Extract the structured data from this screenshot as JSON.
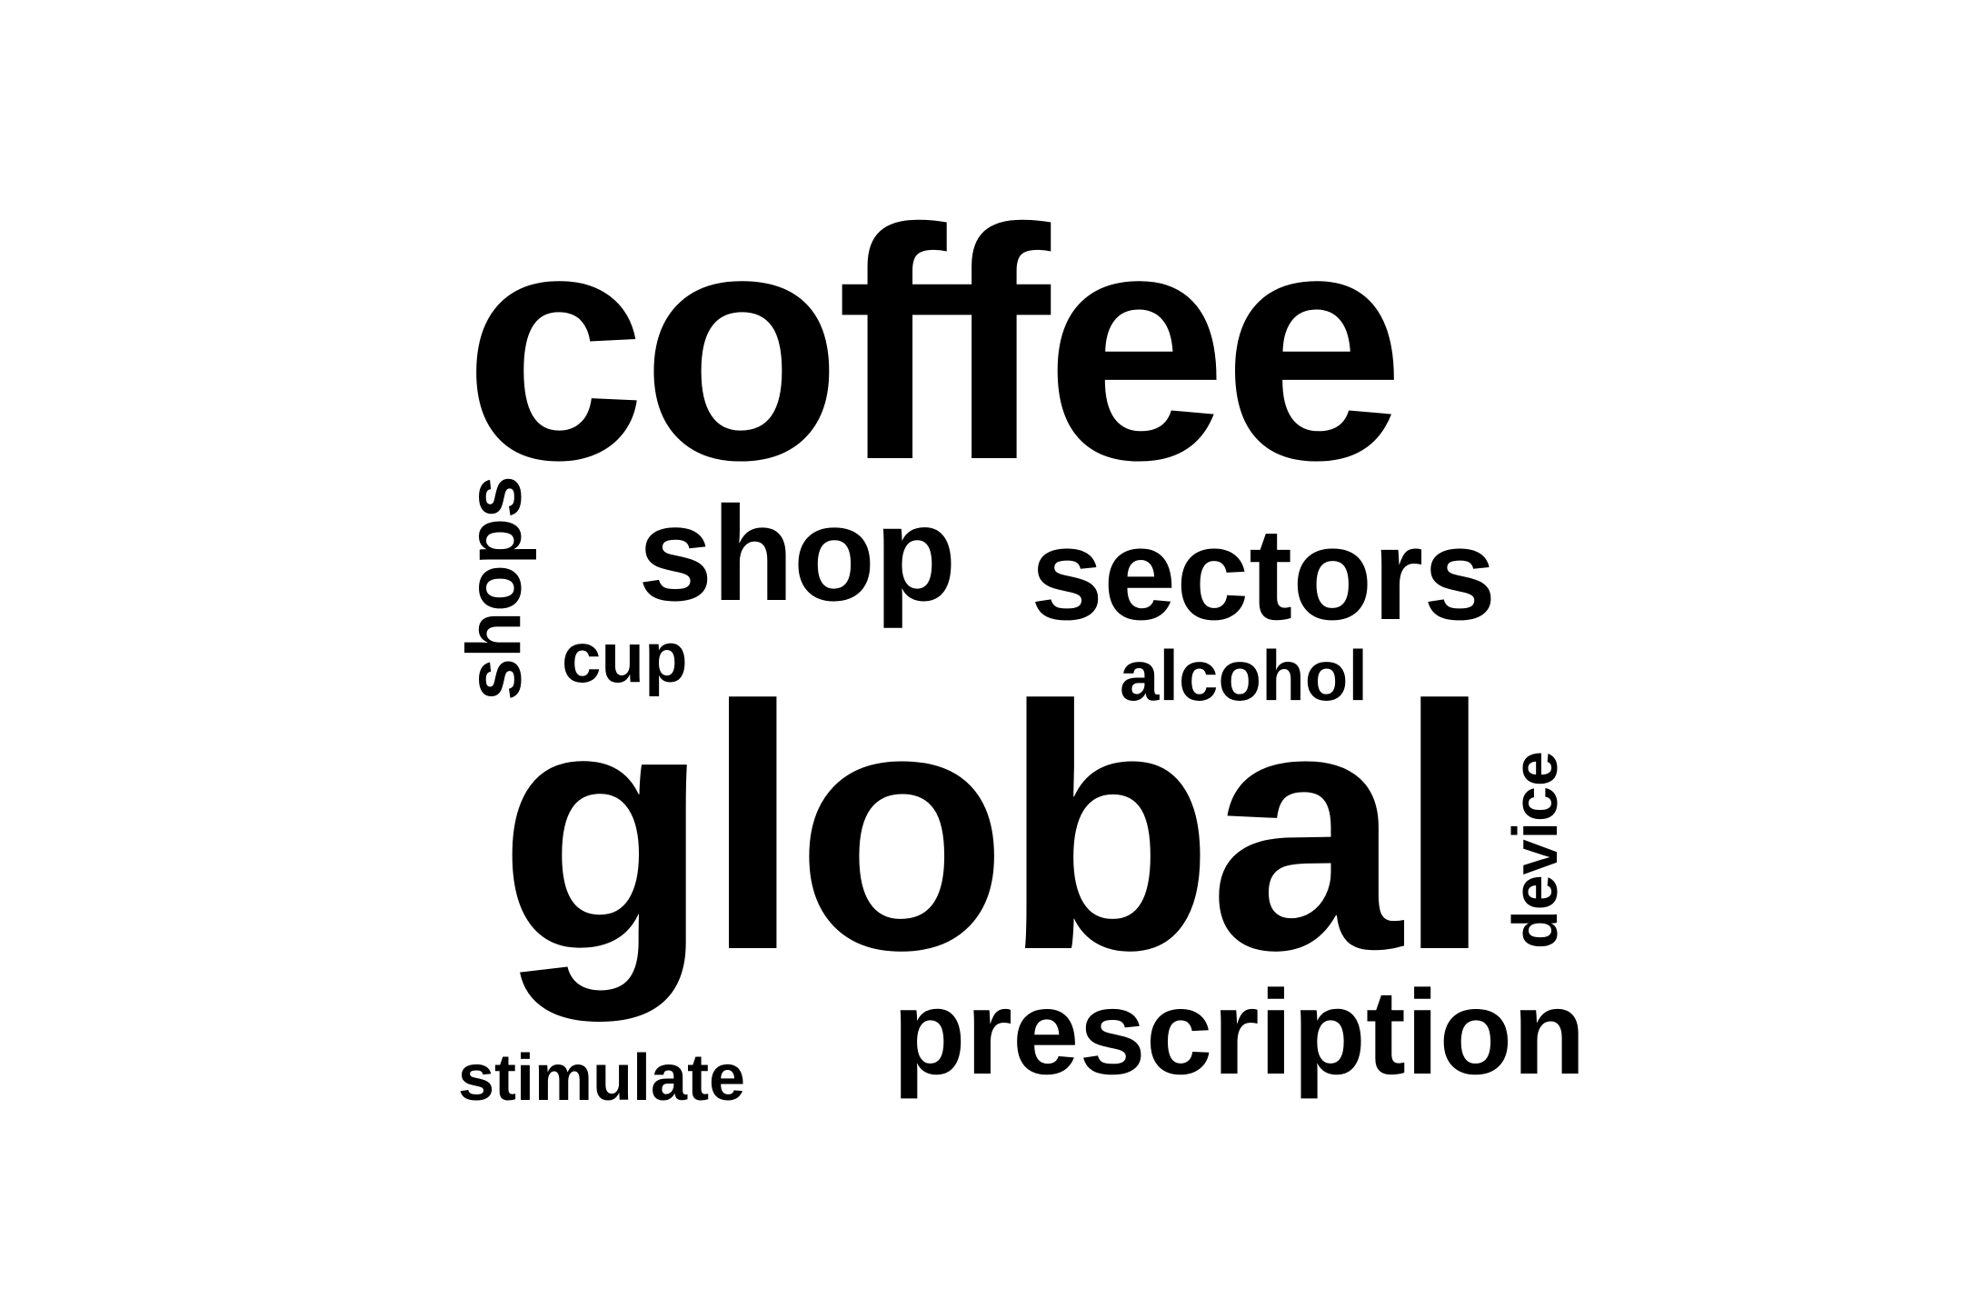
{
  "words": {
    "coffee": "coffee",
    "global": "global",
    "shop": "shop",
    "sectors": "sectors",
    "prescription": "prescription",
    "alcohol": "alcohol",
    "cup": "cup",
    "stimulate": "stimulate",
    "shops": "shops",
    "device": "device"
  },
  "colors": {
    "background": "#ffffff",
    "text": "#000000"
  }
}
